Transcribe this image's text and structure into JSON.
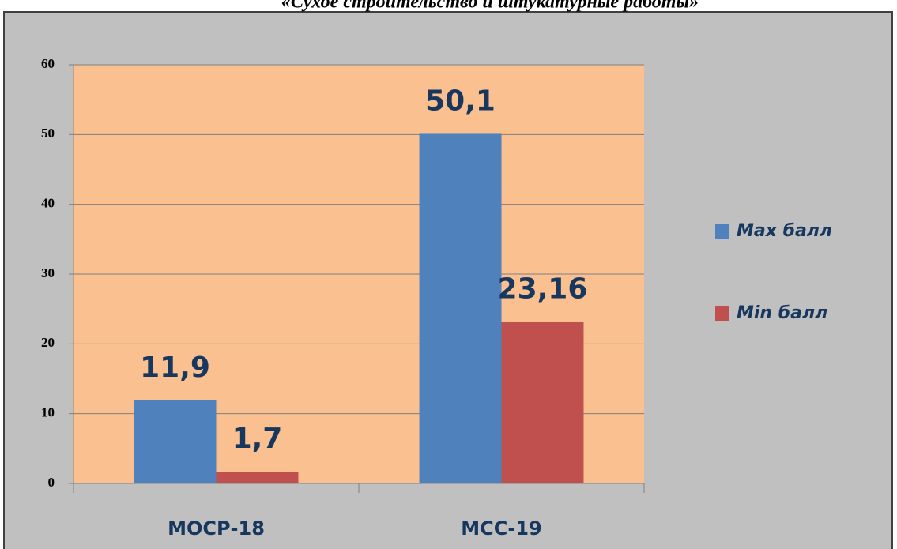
{
  "chart_data": {
    "type": "bar",
    "title": "«Сухое строительство и штукатурные работы»",
    "categories": [
      "МОСР-18",
      "МСС-19"
    ],
    "series": [
      {
        "name": "Max балл",
        "color": "#4f81bd",
        "values": [
          11.9,
          50.1
        ],
        "value_labels": [
          "11,9",
          "50,1"
        ]
      },
      {
        "name": "Min балл",
        "color": "#c0504d",
        "values": [
          1.7,
          23.16
        ],
        "value_labels": [
          "1,7",
          "23,16"
        ]
      }
    ],
    "ylim": [
      0,
      60
    ],
    "yticks": [
      0,
      10,
      20,
      30,
      40,
      50,
      60
    ],
    "grid": true,
    "legend": "right"
  }
}
